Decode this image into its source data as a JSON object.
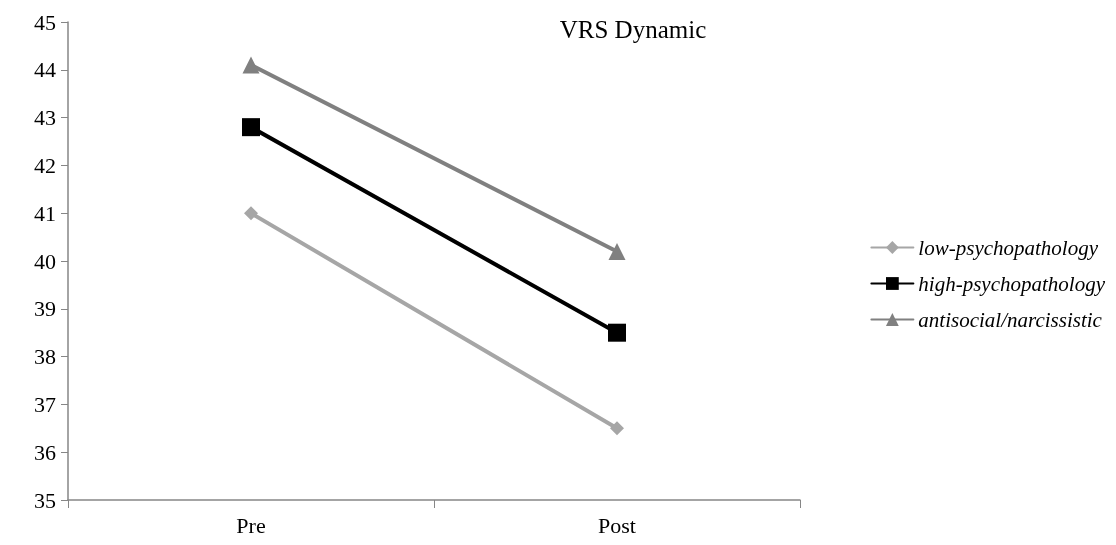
{
  "chart_data": {
    "type": "line",
    "title": "VRS Dynamic",
    "categories": [
      "Pre",
      "Post"
    ],
    "series": [
      {
        "name": "low-psychopathology",
        "color": "#a6a6a6",
        "marker": "diamond",
        "values": [
          41.0,
          36.5
        ]
      },
      {
        "name": "high-psychopathology",
        "color": "#000000",
        "marker": "square",
        "values": [
          42.8,
          38.5
        ]
      },
      {
        "name": "antisocial/narcissistic",
        "color": "#808080",
        "marker": "triangle",
        "values": [
          44.1,
          40.2
        ]
      }
    ],
    "ylim": [
      35,
      45
    ],
    "yticks": [
      35,
      36,
      37,
      38,
      39,
      40,
      41,
      42,
      43,
      44,
      45
    ],
    "grid": false,
    "legend": "right",
    "line_style": "solid"
  }
}
